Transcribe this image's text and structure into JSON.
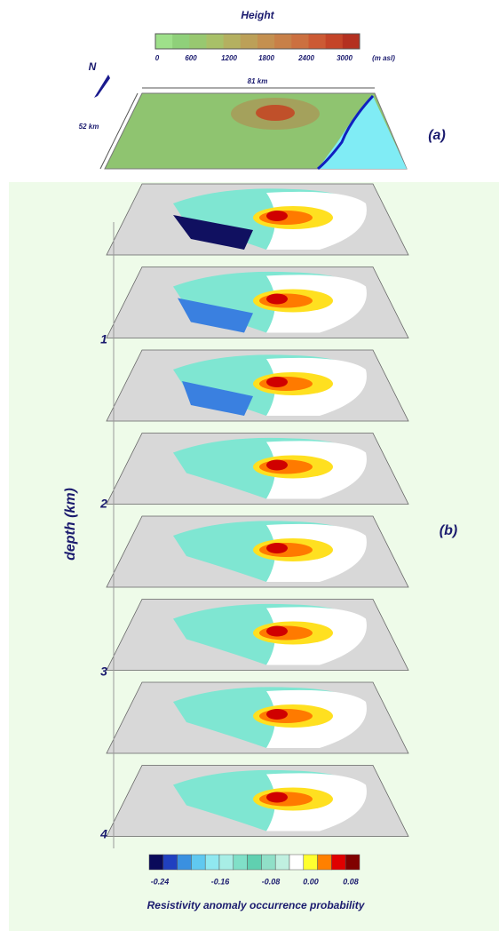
{
  "panel_a": {
    "colorbar_title": "Height",
    "colorbar_ticks": [
      "0",
      "600",
      "1200",
      "1800",
      "2400",
      "3000"
    ],
    "unit": "(m asl)",
    "north": "N",
    "width_label": "81 km",
    "depth_label": "52 km",
    "panel_label": "(a)"
  },
  "panel_b": {
    "axis_title": "depth (km)",
    "axis_ticks": [
      "1",
      "2",
      "3",
      "4"
    ],
    "panel_label": "(b)",
    "colorbar_ticks": [
      "-0.24",
      "-0.16",
      "-0.08",
      "0.00",
      "0.08"
    ],
    "colorbar_title": "Resistivity anomaly occurrence probability"
  }
}
